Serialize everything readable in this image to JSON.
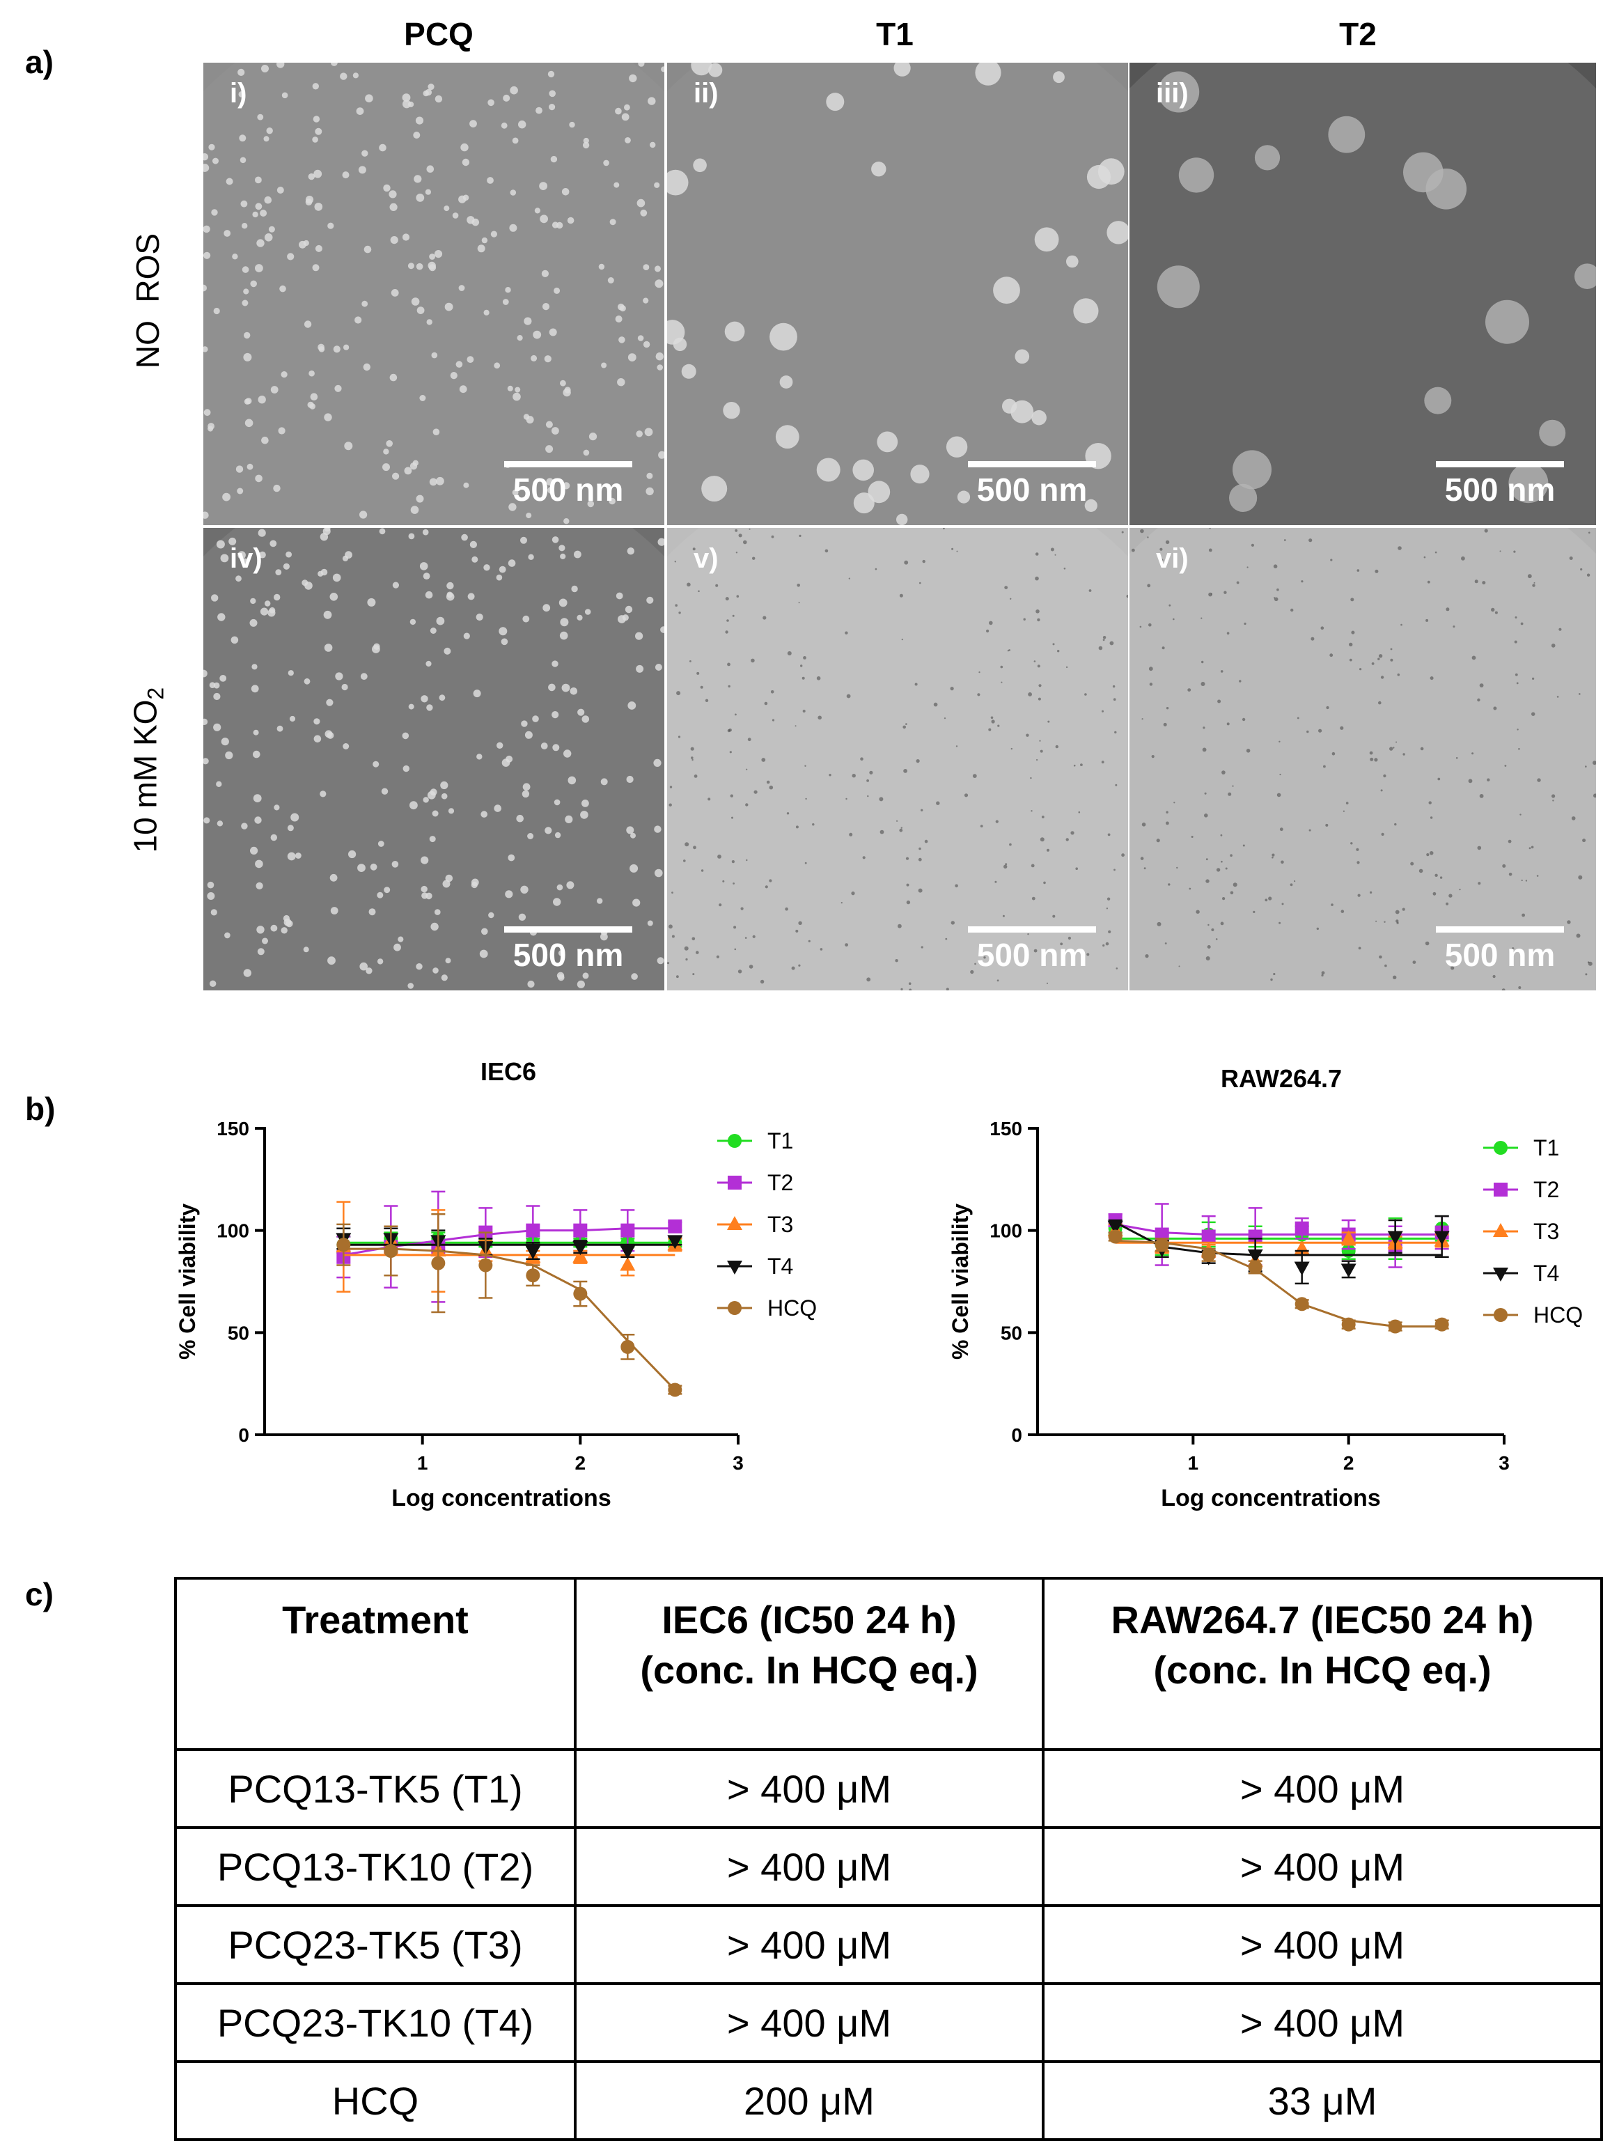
{
  "panel_a": {
    "letter": "a)",
    "columns": [
      "PCQ",
      "T1",
      "T2"
    ],
    "rows": [
      {
        "label_main": "NO  ROS",
        "label_sub": ""
      },
      {
        "label_main": "10 mM KO",
        "label_sub": "2"
      }
    ],
    "images": [
      {
        "label": "i)",
        "scale": "500 nm",
        "tone": "#8d8d8d"
      },
      {
        "label": "ii)",
        "scale": "500 nm",
        "tone": "#8a8a8a"
      },
      {
        "label": "iii)",
        "scale": "500 nm",
        "tone": "#555555"
      },
      {
        "label": "iv)",
        "scale": "500 nm",
        "tone": "#6e6e6e"
      },
      {
        "label": "v)",
        "scale": "500 nm",
        "tone": "#bdbdbd"
      },
      {
        "label": "vi)",
        "scale": "500 nm",
        "tone": "#b3b3b3"
      }
    ]
  },
  "panel_b": {
    "letter": "b)"
  },
  "chart_data": [
    {
      "type": "line",
      "title": "IEC6",
      "xlabel": "Log concentrations",
      "ylabel": "% Cell viability",
      "xlim": [
        0,
        3
      ],
      "ylim": [
        0,
        150
      ],
      "x_ticks": [
        "1",
        "2",
        "3"
      ],
      "y_ticks": [
        "0",
        "50",
        "100",
        "150"
      ],
      "legend_position": "right",
      "x": [
        0.5,
        0.8,
        1.1,
        1.4,
        1.7,
        2.0,
        2.3,
        2.6
      ],
      "series": [
        {
          "name": "T1",
          "color": "#22dd22",
          "marker": "circle",
          "values": [
            93,
            96,
            96,
            94,
            94,
            94,
            94,
            94
          ],
          "errors": [
            4,
            3,
            3,
            2,
            2,
            2,
            2,
            2
          ],
          "fit": [
            94,
            94,
            94,
            94,
            94,
            94,
            94,
            94
          ]
        },
        {
          "name": "T2",
          "color": "#b32fd6",
          "marker": "square",
          "values": [
            87,
            92,
            92,
            99,
            100,
            100,
            100,
            102
          ],
          "errors": [
            10,
            20,
            27,
            12,
            12,
            10,
            10,
            2
          ],
          "fit": [
            88,
            92,
            95,
            98,
            100,
            100,
            101,
            101
          ]
        },
        {
          "name": "T3",
          "color": "#ff7f1e",
          "marker": "triangle-up",
          "values": [
            92,
            95,
            90,
            90,
            87,
            87,
            83,
            93
          ],
          "errors": [
            22,
            6,
            20,
            5,
            3,
            3,
            5,
            3
          ],
          "fit": [
            88,
            88,
            88,
            88,
            88,
            88,
            88,
            88
          ]
        },
        {
          "name": "T4",
          "color": "#111111",
          "marker": "triangle-down",
          "values": [
            96,
            96,
            95,
            92,
            90,
            92,
            90,
            95
          ],
          "errors": [
            5,
            5,
            5,
            4,
            4,
            3,
            3,
            2
          ],
          "fit": [
            93,
            93,
            93,
            93,
            93,
            93,
            93,
            93
          ]
        },
        {
          "name": "HCQ",
          "color": "#a86f2c",
          "marker": "circle",
          "values": [
            93,
            90,
            84,
            83,
            78,
            69,
            43,
            22
          ],
          "errors": [
            10,
            12,
            24,
            16,
            5,
            6,
            6,
            2
          ],
          "fit": [
            91,
            91,
            90,
            88,
            83,
            71,
            46,
            22
          ]
        }
      ]
    },
    {
      "type": "line",
      "title": "RAW264.7",
      "xlabel": "Log concentrations",
      "ylabel": "% Cell viability",
      "xlim": [
        0,
        3
      ],
      "ylim": [
        0,
        150
      ],
      "x_ticks": [
        "1",
        "2",
        "3"
      ],
      "y_ticks": [
        "0",
        "50",
        "100",
        "150"
      ],
      "legend_position": "right",
      "x": [
        0.5,
        0.8,
        1.1,
        1.4,
        1.7,
        2.0,
        2.3,
        2.6
      ],
      "series": [
        {
          "name": "T1",
          "color": "#22dd22",
          "marker": "circle",
          "values": [
            101,
            93,
            98,
            97,
            98,
            90,
            96,
            101
          ],
          "errors": [
            3,
            5,
            6,
            5,
            4,
            4,
            10,
            6
          ],
          "fit": [
            96,
            96,
            96,
            96,
            96,
            96,
            96,
            96
          ]
        },
        {
          "name": "T2",
          "color": "#b32fd6",
          "marker": "square",
          "values": [
            105,
            98,
            97,
            97,
            101,
            98,
            92,
            99
          ],
          "errors": [
            3,
            15,
            10,
            14,
            5,
            7,
            10,
            8
          ],
          "fit": [
            103,
            99,
            98,
            98,
            98,
            98,
            98,
            98
          ]
        },
        {
          "name": "T3",
          "color": "#ff7f1e",
          "marker": "triangle-up",
          "values": [
            100,
            92,
            90,
            85,
            91,
            96,
            94,
            95
          ],
          "errors": [
            3,
            3,
            3,
            3,
            3,
            3,
            3,
            3
          ],
          "fit": [
            94,
            94,
            94,
            94,
            94,
            94,
            94,
            94
          ]
        },
        {
          "name": "T4",
          "color": "#111111",
          "marker": "triangle-down",
          "values": [
            102,
            91,
            87,
            88,
            82,
            81,
            97,
            97
          ],
          "errors": [
            3,
            4,
            3,
            8,
            8,
            4,
            8,
            10
          ],
          "fit": [
            104,
            92,
            89,
            88,
            88,
            88,
            88,
            88
          ]
        },
        {
          "name": "HCQ",
          "color": "#a86f2c",
          "marker": "circle",
          "values": [
            97,
            93,
            88,
            82,
            64,
            54,
            53,
            54
          ],
          "errors": [
            2,
            3,
            3,
            3,
            2,
            2,
            2,
            2
          ],
          "fit": [
            95,
            94,
            91,
            81,
            64,
            56,
            53,
            53
          ]
        }
      ]
    }
  ],
  "panel_c": {
    "letter": "c)",
    "headers": [
      [
        "Treatment"
      ],
      [
        "IEC6 (IC50 24 h)",
        "(conc. In HCQ eq.)"
      ],
      [
        "RAW264.7 (IEC50 24 h)",
        "(conc. In HCQ eq.)"
      ]
    ],
    "rows": [
      [
        "PCQ13-TK5 (T1)",
        "> 400 μM",
        "> 400 μM"
      ],
      [
        "PCQ13-TK10 (T2)",
        "> 400 μM",
        "> 400 μM"
      ],
      [
        "PCQ23-TK5 (T3)",
        "> 400 μM",
        "> 400 μM"
      ],
      [
        "PCQ23-TK10 (T4)",
        "> 400 μM",
        "> 400 μM"
      ],
      [
        "HCQ",
        "200 μM",
        "33 μM"
      ]
    ]
  }
}
